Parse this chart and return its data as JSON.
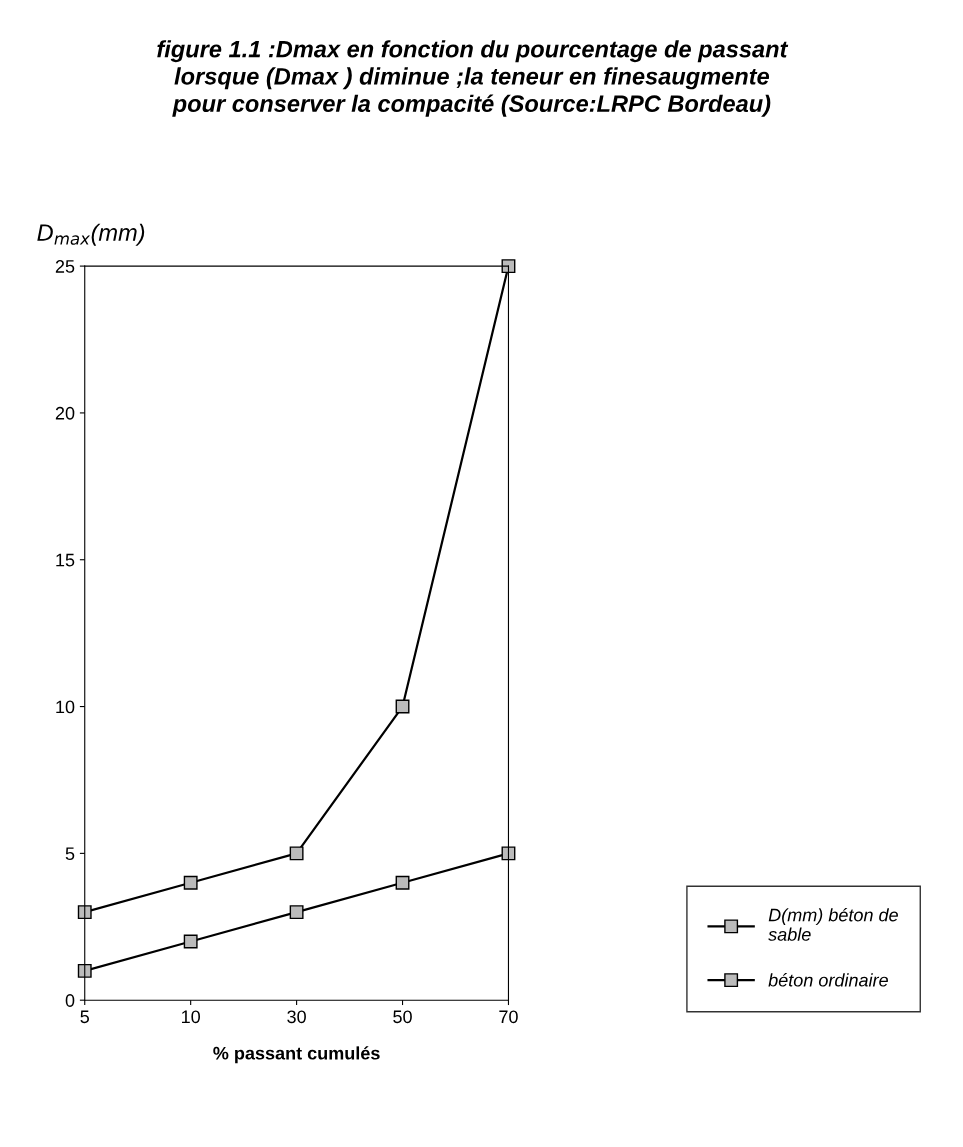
{
  "chart_data": {
    "type": "line",
    "title": "figure 1.1 :Dmax en fonction du pourcentage de passant\nlorsque (Dmax ) diminue ;la teneur en finesaugmente\npour conserver la compacité (Source:LRPC Bordeau)",
    "ylabel": "D$_{max}$(mm)",
    "xlabel": "% passant cumulés",
    "categories": [
      "5",
      "10",
      "30",
      "50",
      "70"
    ],
    "series": [
      {
        "name": "D(mm) béton de\nsable",
        "color": "#000000",
        "values": [
          1,
          2,
          3,
          4,
          5
        ]
      },
      {
        "name": "béton ordinaire",
        "color": "#000000",
        "values": [
          3,
          4,
          5,
          10,
          25
        ]
      }
    ],
    "ylim": [
      0,
      25
    ],
    "yticks": [
      0,
      5,
      10,
      15,
      20,
      25
    ],
    "grid": false,
    "legend": "bottom right",
    "marker": "square",
    "line_style": "solid"
  }
}
